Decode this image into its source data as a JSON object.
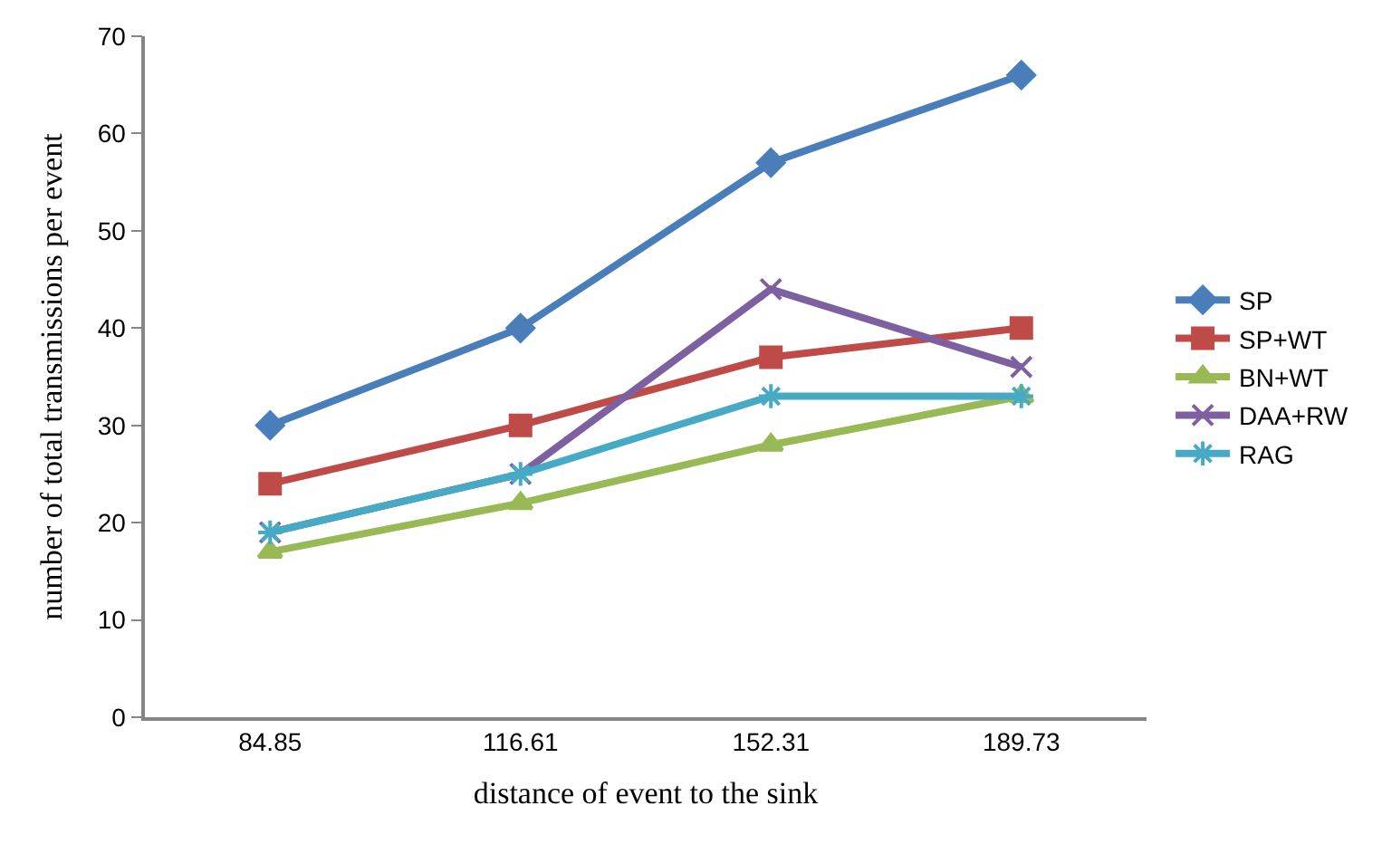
{
  "chart_data": {
    "type": "line",
    "xlabel": "distance of event to the sink",
    "ylabel": "number of total transmissions per event",
    "categories": [
      "84.85",
      "116.61",
      "152.31",
      "189.73"
    ],
    "series": [
      {
        "name": "SP",
        "color": "#4a7ebb",
        "marker": "diamond",
        "values": [
          30,
          40,
          57,
          66
        ]
      },
      {
        "name": "SP+WT",
        "color": "#be4b48",
        "marker": "square",
        "values": [
          24,
          30,
          37,
          40
        ]
      },
      {
        "name": "BN+WT",
        "color": "#98b954",
        "marker": "triangle",
        "values": [
          17,
          22,
          28,
          33
        ]
      },
      {
        "name": "DAA+RW",
        "color": "#7d60a0",
        "marker": "cross",
        "values": [
          19,
          25,
          44,
          36
        ]
      },
      {
        "name": "RAG",
        "color": "#46aac5",
        "marker": "cross",
        "values": [
          19,
          25,
          33,
          33
        ]
      }
    ],
    "ylim": [
      0,
      70
    ],
    "yticks": [
      0,
      10,
      20,
      30,
      40,
      50,
      60,
      70
    ],
    "grid": false,
    "legend": "right",
    "line_style": "solid"
  }
}
